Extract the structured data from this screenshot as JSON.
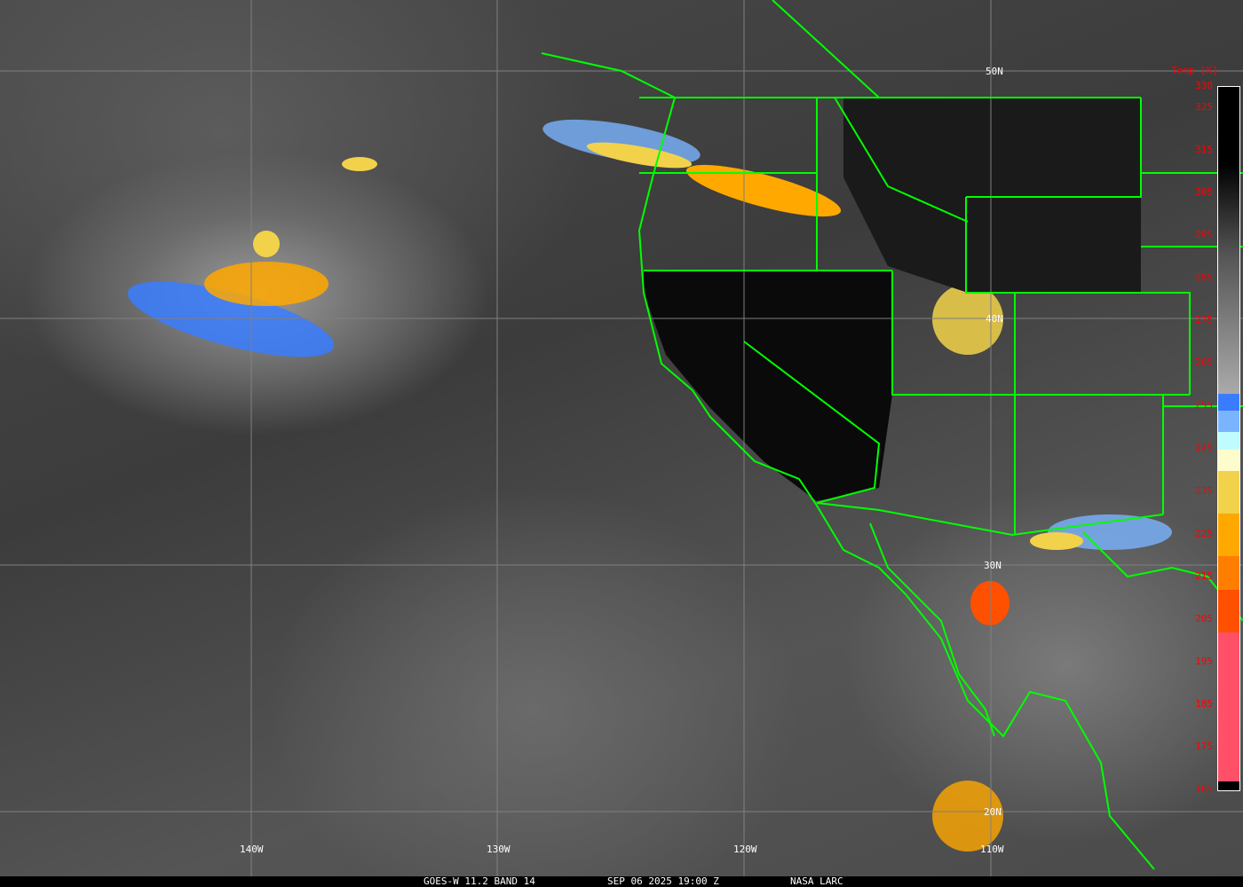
{
  "image": {
    "satellite": "GOES-W",
    "caption": {
      "instrument": "GOES-W 11.2 BAND 14",
      "datetime": "SEP 06 2025 19:00 Z",
      "source": "NASA LARC"
    }
  },
  "grid": {
    "latitude_labels": [
      "50N",
      "40N",
      "30N",
      "20N"
    ],
    "longitude_labels": [
      "140W",
      "130W",
      "120W",
      "110W"
    ],
    "grid_color": "#808080",
    "border_color": "#00ff00"
  },
  "colorbar": {
    "title": "Temp [K]",
    "ticks": [
      "330",
      "325",
      "315",
      "305",
      "295",
      "285",
      "275",
      "265",
      "255",
      "245",
      "235",
      "225",
      "215",
      "205",
      "195",
      "185",
      "175",
      "165"
    ],
    "range": [
      165,
      330
    ],
    "label_color": "#ff0000",
    "segments": [
      {
        "from": 330,
        "to": 258,
        "color": "gradient black-to-gray"
      },
      {
        "from": 258,
        "to": 254,
        "color": "#3a7cff"
      },
      {
        "from": 254,
        "to": 249,
        "color": "#7ab4ff"
      },
      {
        "from": 249,
        "to": 245,
        "color": "#c0fcff"
      },
      {
        "from": 245,
        "to": 240,
        "color": "#fefccc"
      },
      {
        "from": 240,
        "to": 230,
        "color": "#f2d24a"
      },
      {
        "from": 230,
        "to": 220,
        "color": "#ffa800"
      },
      {
        "from": 220,
        "to": 212,
        "color": "#ff7e00"
      },
      {
        "from": 212,
        "to": 202,
        "color": "#ff5000"
      },
      {
        "from": 202,
        "to": 167,
        "color": "#ff5068"
      },
      {
        "from": 167,
        "to": 165,
        "color": "#000000"
      }
    ]
  }
}
